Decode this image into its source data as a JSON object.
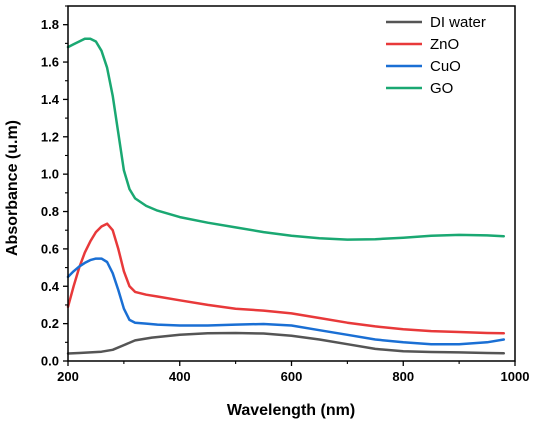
{
  "chart_data": {
    "type": "line",
    "title": "",
    "xlabel": "Wavelength (nm)",
    "ylabel": "Absorbance (u.m)",
    "xlim": [
      200,
      1000
    ],
    "ylim": [
      0.0,
      1.9
    ],
    "xticks": [
      200,
      400,
      600,
      800,
      1000
    ],
    "yticks": [
      0.0,
      0.2,
      0.4,
      0.6,
      0.8,
      1.0,
      1.2,
      1.4,
      1.6,
      1.8
    ],
    "grid": false,
    "legend_position": "top-right",
    "series": [
      {
        "name": "DI water",
        "color": "#555555",
        "x": [
          200,
          220,
          240,
          260,
          280,
          300,
          320,
          350,
          400,
          450,
          500,
          550,
          600,
          650,
          700,
          750,
          800,
          850,
          900,
          950,
          980
        ],
        "y": [
          0.04,
          0.043,
          0.046,
          0.05,
          0.06,
          0.085,
          0.11,
          0.125,
          0.14,
          0.148,
          0.15,
          0.147,
          0.135,
          0.115,
          0.09,
          0.065,
          0.052,
          0.048,
          0.046,
          0.043,
          0.041
        ]
      },
      {
        "name": "ZnO",
        "color": "#e8393a",
        "x": [
          200,
          210,
          220,
          230,
          240,
          250,
          260,
          270,
          280,
          290,
          300,
          310,
          320,
          340,
          360,
          400,
          450,
          500,
          550,
          600,
          650,
          700,
          750,
          800,
          850,
          900,
          950,
          980
        ],
        "y": [
          0.29,
          0.4,
          0.5,
          0.58,
          0.64,
          0.69,
          0.72,
          0.735,
          0.7,
          0.6,
          0.48,
          0.4,
          0.37,
          0.355,
          0.345,
          0.325,
          0.3,
          0.28,
          0.27,
          0.255,
          0.23,
          0.205,
          0.185,
          0.17,
          0.16,
          0.155,
          0.15,
          0.148
        ]
      },
      {
        "name": "CuO",
        "color": "#1a6fd4",
        "x": [
          200,
          210,
          220,
          230,
          240,
          250,
          260,
          270,
          280,
          290,
          300,
          310,
          320,
          340,
          360,
          400,
          450,
          500,
          550,
          600,
          650,
          700,
          750,
          800,
          850,
          900,
          950,
          980
        ],
        "y": [
          0.45,
          0.48,
          0.505,
          0.525,
          0.54,
          0.548,
          0.548,
          0.53,
          0.47,
          0.38,
          0.28,
          0.22,
          0.205,
          0.2,
          0.195,
          0.19,
          0.19,
          0.195,
          0.198,
          0.19,
          0.165,
          0.14,
          0.115,
          0.1,
          0.09,
          0.09,
          0.1,
          0.115
        ]
      },
      {
        "name": "GO",
        "color": "#1aa872",
        "x": [
          200,
          210,
          220,
          230,
          240,
          250,
          260,
          270,
          280,
          290,
          300,
          310,
          320,
          340,
          360,
          400,
          450,
          500,
          550,
          600,
          650,
          700,
          750,
          800,
          850,
          900,
          950,
          980
        ],
        "y": [
          1.68,
          1.695,
          1.71,
          1.725,
          1.725,
          1.71,
          1.66,
          1.57,
          1.42,
          1.22,
          1.02,
          0.92,
          0.87,
          0.83,
          0.805,
          0.77,
          0.74,
          0.715,
          0.69,
          0.67,
          0.657,
          0.65,
          0.652,
          0.66,
          0.67,
          0.675,
          0.672,
          0.668
        ]
      }
    ]
  }
}
